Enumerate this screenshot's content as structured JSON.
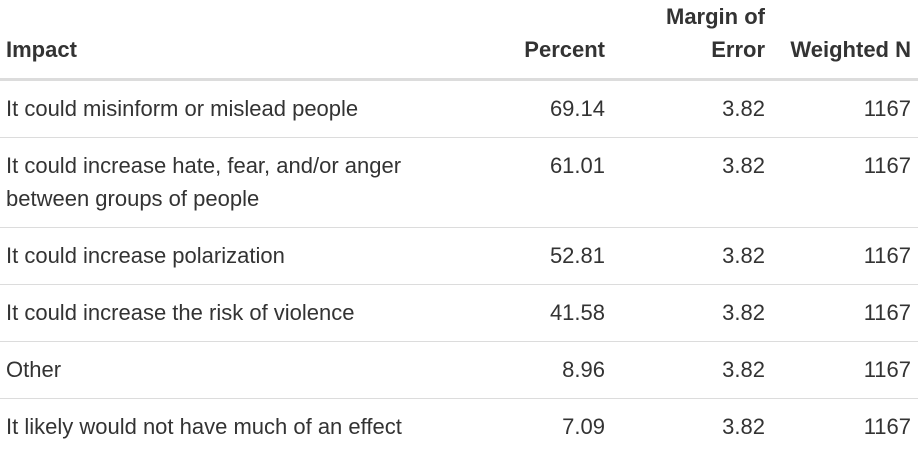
{
  "table": {
    "columns": [
      "Impact",
      "Percent",
      "Margin of Error",
      "Weighted N"
    ],
    "rows": [
      [
        "It could misinform or mislead people",
        "69.14",
        "3.82",
        "1167"
      ],
      [
        "It could increase hate, fear, and/or anger between groups of people",
        "61.01",
        "3.82",
        "1167"
      ],
      [
        "It could increase polarization",
        "52.81",
        "3.82",
        "1167"
      ],
      [
        "It could increase the risk of violence",
        "41.58",
        "3.82",
        "1167"
      ],
      [
        "Other",
        "8.96",
        "3.82",
        "1167"
      ],
      [
        "It likely would not have much of an effect",
        "7.09",
        "3.82",
        "1167"
      ]
    ]
  }
}
